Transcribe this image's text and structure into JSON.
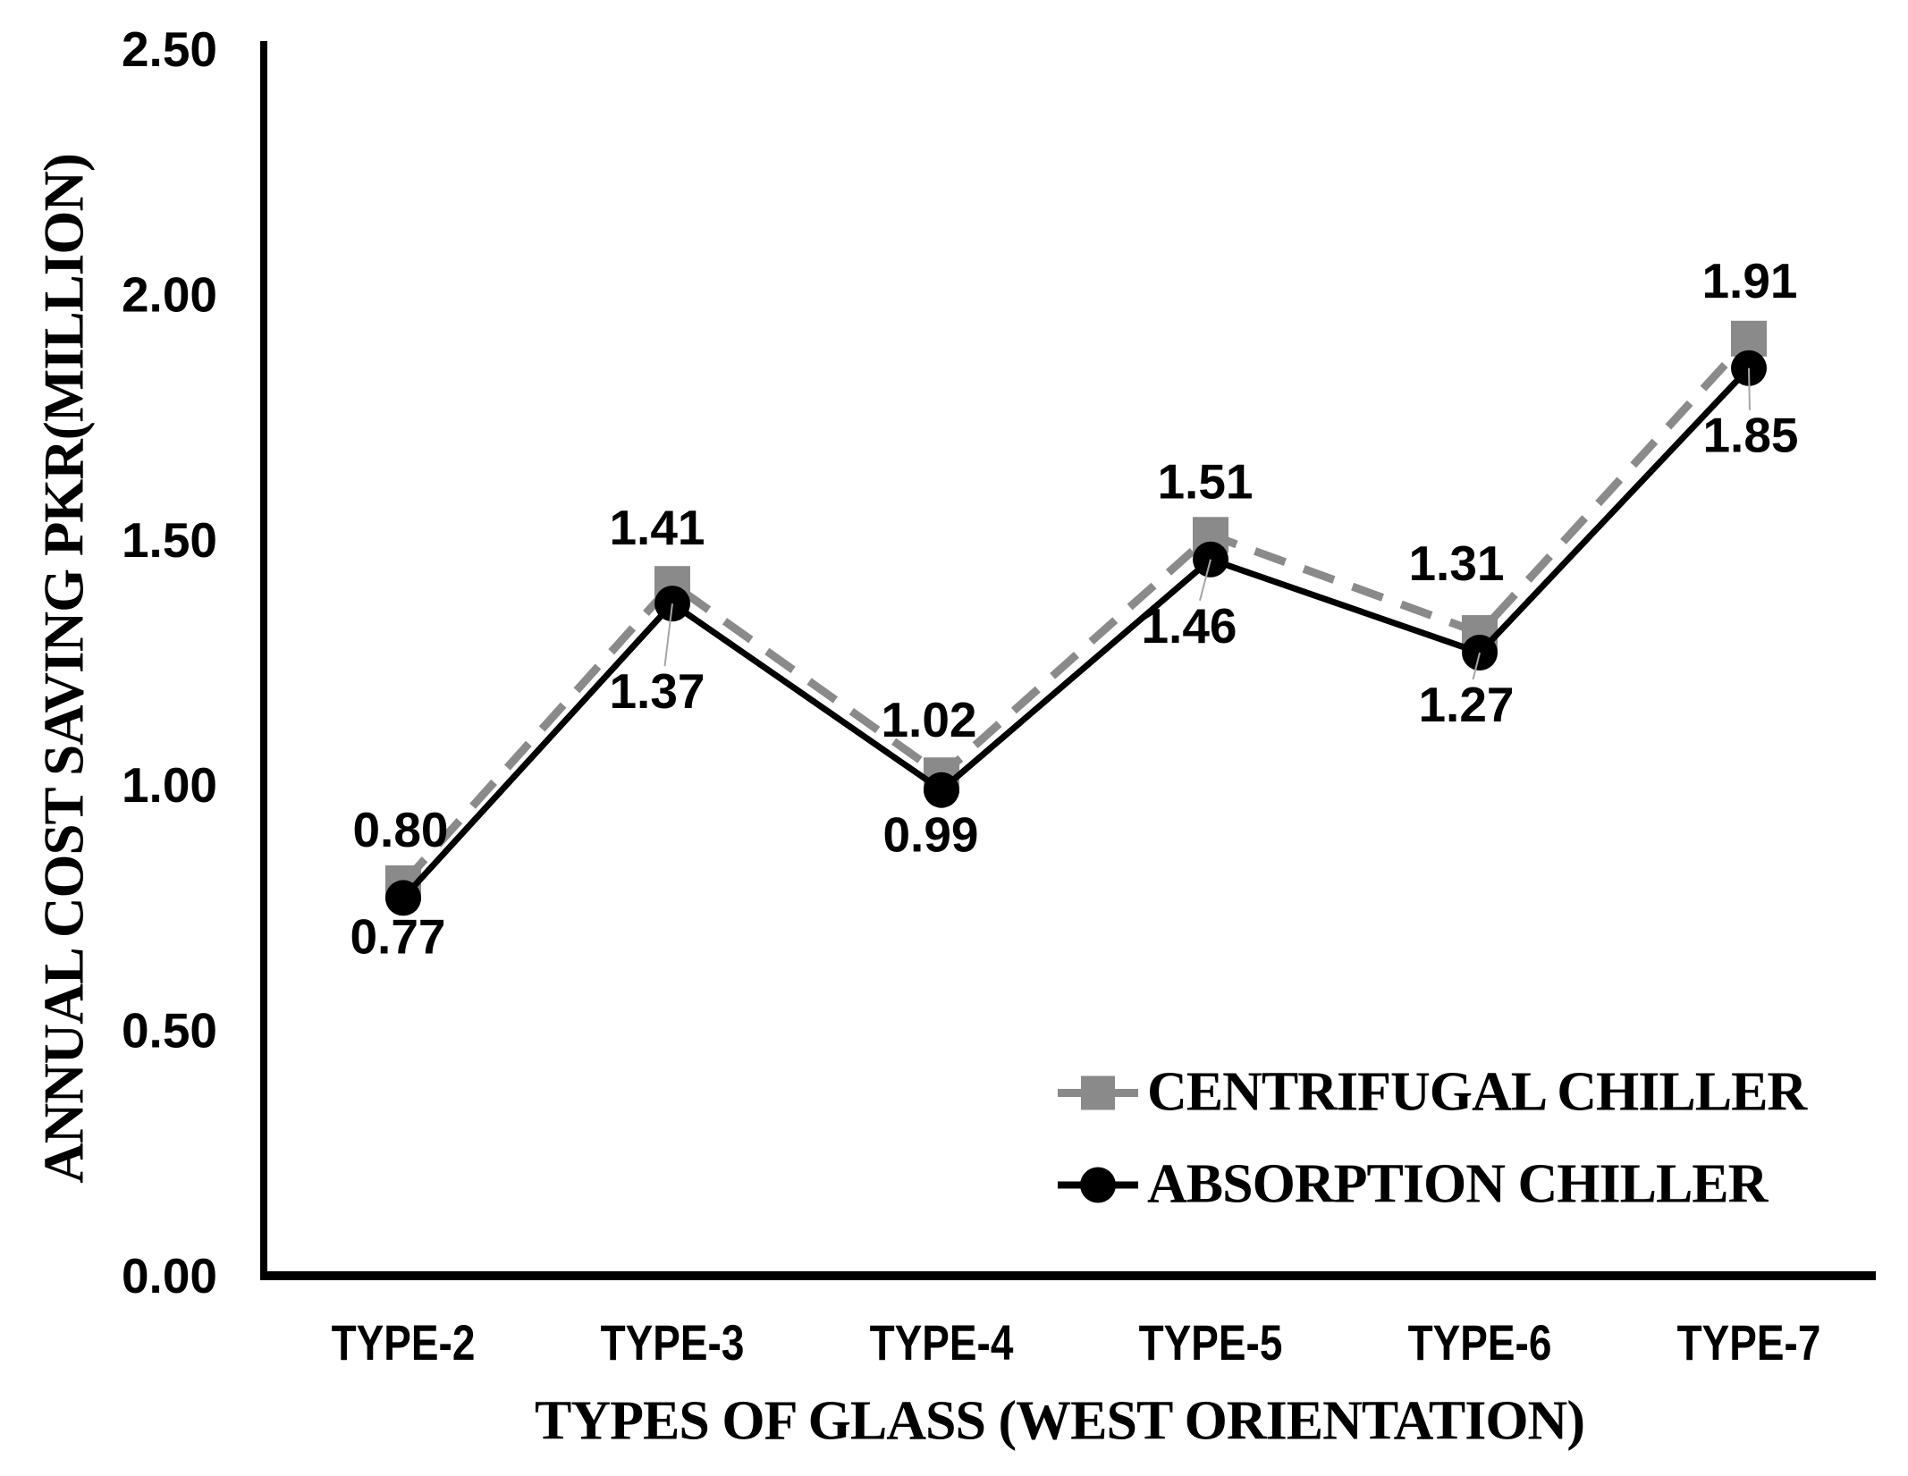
{
  "chart_data": {
    "type": "line",
    "categories": [
      "TYPE-2",
      "TYPE-3",
      "TYPE-4",
      "TYPE-5",
      "TYPE-6",
      "TYPE-7"
    ],
    "series": [
      {
        "name": "CENTRIFUGAL CHILLER",
        "values": [
          0.8,
          1.41,
          1.02,
          1.51,
          1.31,
          1.91
        ],
        "color": "#8a8a8a",
        "line_style": "dashed",
        "marker": "square",
        "label_offsets": [
          [
            -3,
            -60
          ],
          [
            -17,
            -63
          ],
          [
            -14,
            -62
          ],
          [
            -6,
            -60
          ],
          [
            -26,
            -78
          ],
          [
            1,
            -65
          ]
        ]
      },
      {
        "name": "ABSORPTION CHILLER",
        "values": [
          0.77,
          1.37,
          0.99,
          1.46,
          1.27,
          1.85
        ],
        "color": "#000000",
        "line_style": "solid",
        "marker": "circle",
        "label_offsets": [
          [
            -6,
            43
          ],
          [
            -17,
            98
          ],
          [
            -12,
            50
          ],
          [
            -24,
            74
          ],
          [
            -15,
            58
          ],
          [
            2,
            75
          ]
        ],
        "leader_line_indices": [
          1,
          3,
          4,
          5
        ]
      }
    ],
    "title": "",
    "xlabel": "TYPES OF GLASS (WEST ORIENTATION)",
    "ylabel": "ANNUAL COST SAVING PKR(MILLION)",
    "ylim": [
      0.0,
      2.5
    ],
    "ytick_step": 0.5,
    "yticks": [
      "0.00",
      "0.50",
      "1.00",
      "1.50",
      "2.00",
      "2.50"
    ],
    "value_label_decimals": 2,
    "grid": false,
    "legend_position": "inside-lower-right"
  },
  "colors": {
    "background": "#ffffff",
    "axis": "#000000",
    "data_label": "#000000",
    "tick_label": "#000000",
    "leader_line": "#a6a6a6",
    "centrifugal_gray": "#8a8a8a"
  }
}
